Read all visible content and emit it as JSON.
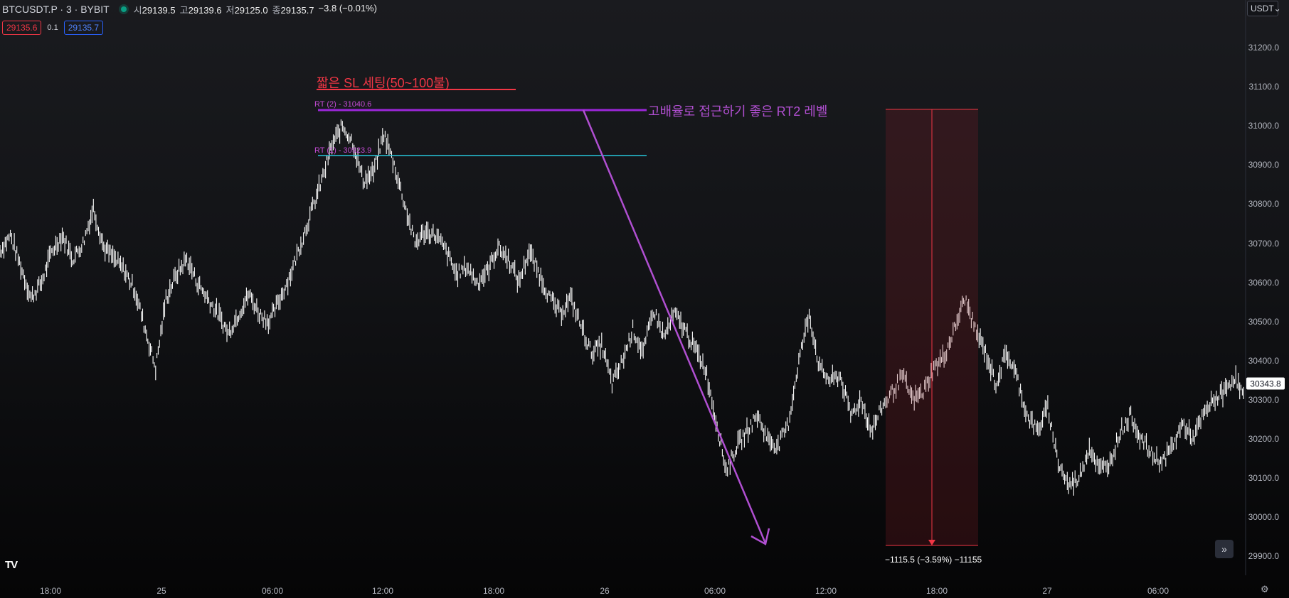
{
  "header": {
    "symbol": "BTCUSDT.P · 3 · BYBIT",
    "ohlc": [
      {
        "label": "시",
        "value": "29139.5"
      },
      {
        "label": "고",
        "value": "29139.6"
      },
      {
        "label": "저",
        "value": "29125.0"
      },
      {
        "label": "종",
        "value": "29135.7"
      }
    ],
    "change": "−3.8 (−0.01%)"
  },
  "quote": {
    "bid": "29135.6",
    "spread": "0.1",
    "ask": "29135.7"
  },
  "currency": "USDT",
  "price_axis": [
    "31200.0",
    "31100.0",
    "31000.0",
    "30900.0",
    "30800.0",
    "30700.0",
    "30600.0",
    "30500.0",
    "30400.0",
    "30300.0",
    "30200.0",
    "30100.0",
    "30000.0",
    "29900.0"
  ],
  "last_price": "30343.8",
  "time_axis": [
    "18:00",
    "25",
    "06:00",
    "12:00",
    "18:00",
    "26",
    "06:00",
    "12:00",
    "18:00",
    "27",
    "06:00"
  ],
  "annotations": {
    "sl_text": "짧은 SL 세팅(50~100불)",
    "rt2_text": "고배율로 접근하기 좋은 RT2 레벨",
    "rt2_label": "RT (2) - 31040.6",
    "rt1_label": "RT (1) - 30923.9",
    "measure": "−1115.5 (−3.59%) −11155"
  },
  "logo": "TV",
  "colors": {
    "sl": "#f23645",
    "rt2": "#9c27d9",
    "rt1": "#26c6da",
    "candle": "#ffffff",
    "arrow": "#b04fd1"
  },
  "chart_data": {
    "type": "line",
    "ylim": [
      29870,
      31250
    ],
    "series": [
      {
        "values": [
          30680,
          30720,
          30640,
          30560,
          30600,
          30680,
          30720,
          30660,
          30700,
          30790,
          30690,
          30660,
          30630,
          30580,
          30480,
          30380,
          30560,
          30620,
          30660,
          30600,
          30560,
          30520,
          30470,
          30520,
          30570,
          30520,
          30500,
          30560,
          30620,
          30700,
          30780,
          30860,
          30950,
          31000,
          30960,
          30860,
          30880,
          30980,
          30900,
          30800,
          30700,
          30730,
          30720,
          30680,
          30620,
          30640,
          30600,
          30630,
          30690,
          30660,
          30600,
          30680,
          30620,
          30560,
          30520,
          30560,
          30490,
          30420,
          30440,
          30340,
          30400,
          30480,
          30420,
          30530,
          30460,
          30520,
          30480,
          30430,
          30380,
          30250,
          30120,
          30180,
          30220,
          30260,
          30200,
          30180,
          30240,
          30400,
          30520,
          30380,
          30350,
          30360,
          30260,
          30300,
          30220,
          30280,
          30320,
          30360,
          30300,
          30320,
          30380,
          30410,
          30480,
          30560,
          30480,
          30420,
          30340,
          30420,
          30360,
          30260,
          30220,
          30280,
          30140,
          30080,
          30100,
          30180,
          30120,
          30140,
          30220,
          30260,
          30200,
          30160,
          30140,
          30180,
          30240,
          30200,
          30260,
          30300,
          30320,
          30360,
          30300
        ]
      }
    ]
  }
}
